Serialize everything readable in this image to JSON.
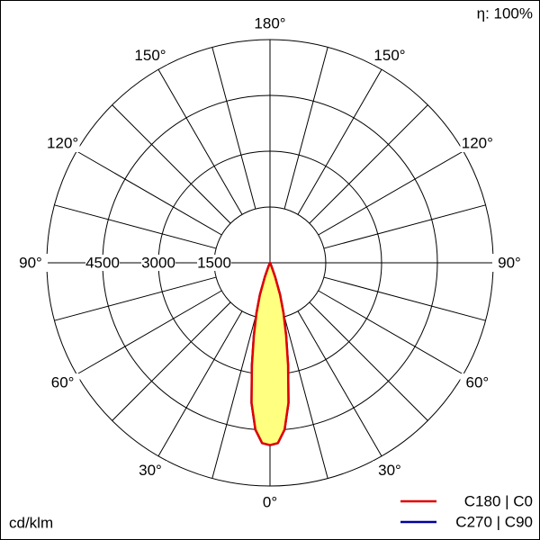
{
  "chart_data": {
    "type": "polar",
    "efficiency": "η: 100%",
    "unit": "cd/klm",
    "rlim": [
      0,
      6000
    ],
    "rticks": [
      1500,
      3000,
      4500
    ],
    "angle_ticks": [
      {
        "value": 180,
        "label": "180°"
      },
      {
        "value": -150,
        "label": "150°"
      },
      {
        "value": 150,
        "label": "150°"
      },
      {
        "value": -120,
        "label": "120°"
      },
      {
        "value": 120,
        "label": "120°"
      },
      {
        "value": -90,
        "label": "90°"
      },
      {
        "value": 90,
        "label": "90°"
      },
      {
        "value": -60,
        "label": "60°"
      },
      {
        "value": 60,
        "label": "60°"
      },
      {
        "value": -30,
        "label": "30°"
      },
      {
        "value": 30,
        "label": "30°"
      },
      {
        "value": 0,
        "label": "0°"
      }
    ],
    "angles": [
      -25,
      -22.5,
      -20,
      -17.5,
      -15,
      -12.5,
      -10,
      -7.5,
      -5,
      -2.5,
      0,
      2.5,
      5,
      7.5,
      10,
      12.5,
      15,
      17.5,
      20,
      22.5,
      25
    ],
    "series": [
      {
        "name": "C270 | C90",
        "color": "#0000a0",
        "values": [
          0,
          100,
          400,
          900,
          1400,
          2000,
          2800,
          3800,
          4500,
          4850,
          4900,
          4850,
          4500,
          3800,
          2800,
          2000,
          1400,
          900,
          400,
          100,
          0
        ]
      },
      {
        "name": "C180 | C0",
        "color": "#e00000",
        "fill": "#ffff80",
        "values": [
          0,
          100,
          400,
          900,
          1400,
          2000,
          2800,
          3800,
          4500,
          4850,
          4900,
          4850,
          4500,
          3800,
          2800,
          2000,
          1400,
          900,
          400,
          100,
          0
        ]
      }
    ]
  }
}
